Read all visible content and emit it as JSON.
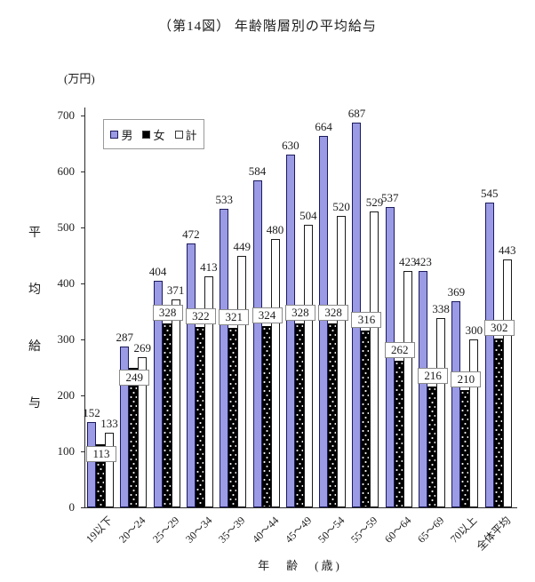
{
  "page": {
    "title": "（第14図） 年齢階層別の平均給与",
    "unit_label": "(万円)",
    "y_axis_label": "平均給与",
    "x_axis_label": "年　齢　(歳)"
  },
  "chart_data": {
    "type": "bar",
    "title": "（第14図） 年齢階層別の平均給与",
    "xlabel": "年齢(歳)",
    "ylabel": "平均給与(万円)",
    "ylim": [
      0,
      700
    ],
    "yticks": [
      0,
      100,
      200,
      300,
      400,
      500,
      600,
      700
    ],
    "grid": false,
    "legend_position": "top-left",
    "categories": [
      "19以下",
      "20〜24",
      "25〜29",
      "30〜34",
      "35〜39",
      "40〜44",
      "45〜49",
      "50〜54",
      "55〜59",
      "60〜64",
      "65〜69",
      "70以上",
      "全体平均"
    ],
    "series": [
      {
        "key": "male",
        "name": "男",
        "color": "#9b9ae4",
        "border_color": "#1b1b5e",
        "values": [
          152,
          287,
          404,
          472,
          533,
          584,
          630,
          664,
          687,
          537,
          423,
          369,
          545
        ]
      },
      {
        "key": "female",
        "name": "女",
        "color": "#000000",
        "border_color": "#000000",
        "pattern": "white-dots",
        "values": [
          113,
          249,
          328,
          322,
          321,
          324,
          328,
          328,
          316,
          262,
          216,
          210,
          302
        ],
        "label_placement": [
          "inside",
          "inside",
          "above",
          "above",
          "above",
          "above",
          "above",
          "above",
          "above",
          "above",
          "above",
          "above",
          "above"
        ]
      },
      {
        "key": "total",
        "name": "計",
        "color": "#ffffff",
        "border_color": "#1a1a1a",
        "values": [
          133,
          269,
          371,
          413,
          449,
          480,
          504,
          520,
          529,
          423,
          338,
          300,
          443
        ]
      }
    ]
  }
}
